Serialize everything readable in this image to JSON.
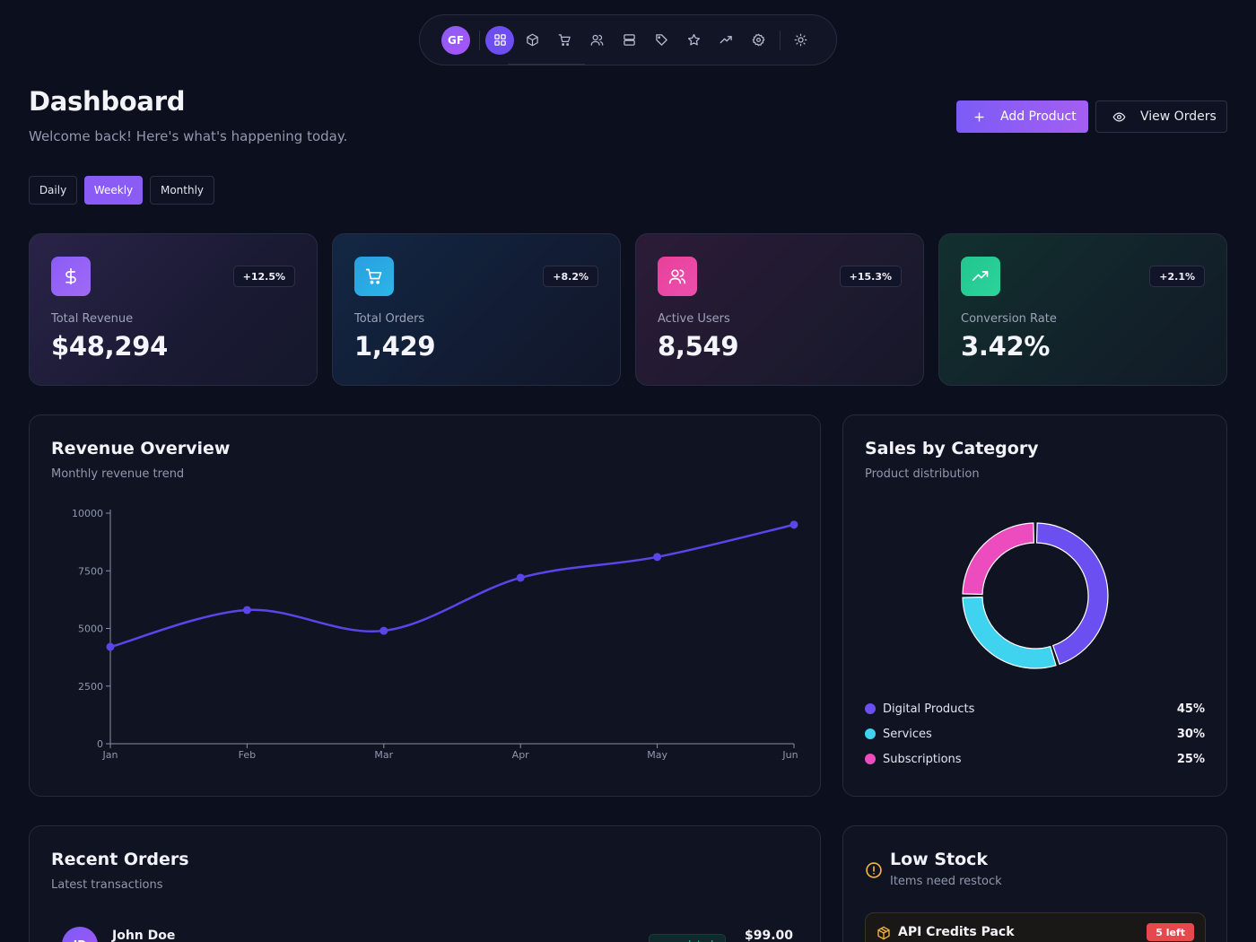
{
  "app": {
    "avatar_initials": "GF"
  },
  "nav": {
    "items": [
      {
        "icon": "grid-icon",
        "active": true
      },
      {
        "icon": "box-icon",
        "active": false
      },
      {
        "icon": "cart-icon",
        "active": false
      },
      {
        "icon": "users-icon",
        "active": false
      },
      {
        "icon": "server-icon",
        "active": false
      },
      {
        "icon": "tag-icon",
        "active": false
      },
      {
        "icon": "star-icon",
        "active": false
      },
      {
        "icon": "trending-up-icon",
        "active": false
      },
      {
        "icon": "gear-icon",
        "active": false
      }
    ],
    "theme_icon": "sun-icon"
  },
  "header": {
    "title": "Dashboard",
    "subtitle": "Welcome back! Here's what's happening today.",
    "add_product_label": "Add Product",
    "view_orders_label": "View Orders"
  },
  "periods": {
    "options": [
      "Daily",
      "Weekly",
      "Monthly"
    ],
    "selected": "Weekly"
  },
  "stats": [
    {
      "label": "Total Revenue",
      "value": "$48,294",
      "change": "+12.5%",
      "icon": "dollar-icon",
      "color": "#8b5cf6"
    },
    {
      "label": "Total Orders",
      "value": "1,429",
      "change": "+8.2%",
      "icon": "cart-icon",
      "color": "#2a9ee0"
    },
    {
      "label": "Active Users",
      "value": "8,549",
      "change": "+15.3%",
      "icon": "users-icon",
      "color": "#e7409a"
    },
    {
      "label": "Conversion Rate",
      "value": "3.42%",
      "change": "+2.1%",
      "icon": "trending-up-icon",
      "color": "#22c58e"
    }
  ],
  "revenue": {
    "title": "Revenue Overview",
    "subtitle": "Monthly revenue trend"
  },
  "chart_data": [
    {
      "type": "line",
      "title": "",
      "xlabel": "",
      "ylabel": "",
      "categories": [
        "Jan",
        "Feb",
        "Mar",
        "Apr",
        "May",
        "Jun"
      ],
      "series": [
        {
          "values": [
            4200,
            5800,
            4900,
            7200,
            8100,
            9500
          ],
          "color": "#5b45e8"
        }
      ],
      "ylim": [
        0,
        10000
      ],
      "yticks": [
        0,
        2500,
        5000,
        7500,
        10000
      ],
      "grid": false
    },
    {
      "type": "pie",
      "title": "",
      "categories": [
        "Digital Products",
        "Services",
        "Subscriptions"
      ],
      "values": [
        45,
        30,
        25
      ],
      "colors": [
        "#6b4ff0",
        "#3fd3ef",
        "#ec4cbd"
      ]
    }
  ],
  "category": {
    "title": "Sales by Category",
    "subtitle": "Product distribution",
    "legend": [
      {
        "name": "Digital Products",
        "pct": "45%",
        "color": "#6b4ff0"
      },
      {
        "name": "Services",
        "pct": "30%",
        "color": "#3fd3ef"
      },
      {
        "name": "Subscriptions",
        "pct": "25%",
        "color": "#ec4cbd"
      }
    ]
  },
  "orders": {
    "title": "Recent Orders",
    "subtitle": "Latest transactions",
    "rows": [
      {
        "initials": "JD",
        "name": "John Doe",
        "status": "completed",
        "amount": "$99.00"
      }
    ]
  },
  "stock": {
    "title": "Low Stock",
    "subtitle": "Items need restock",
    "items": [
      {
        "name": "API Credits Pack",
        "left": "5 left"
      }
    ]
  }
}
